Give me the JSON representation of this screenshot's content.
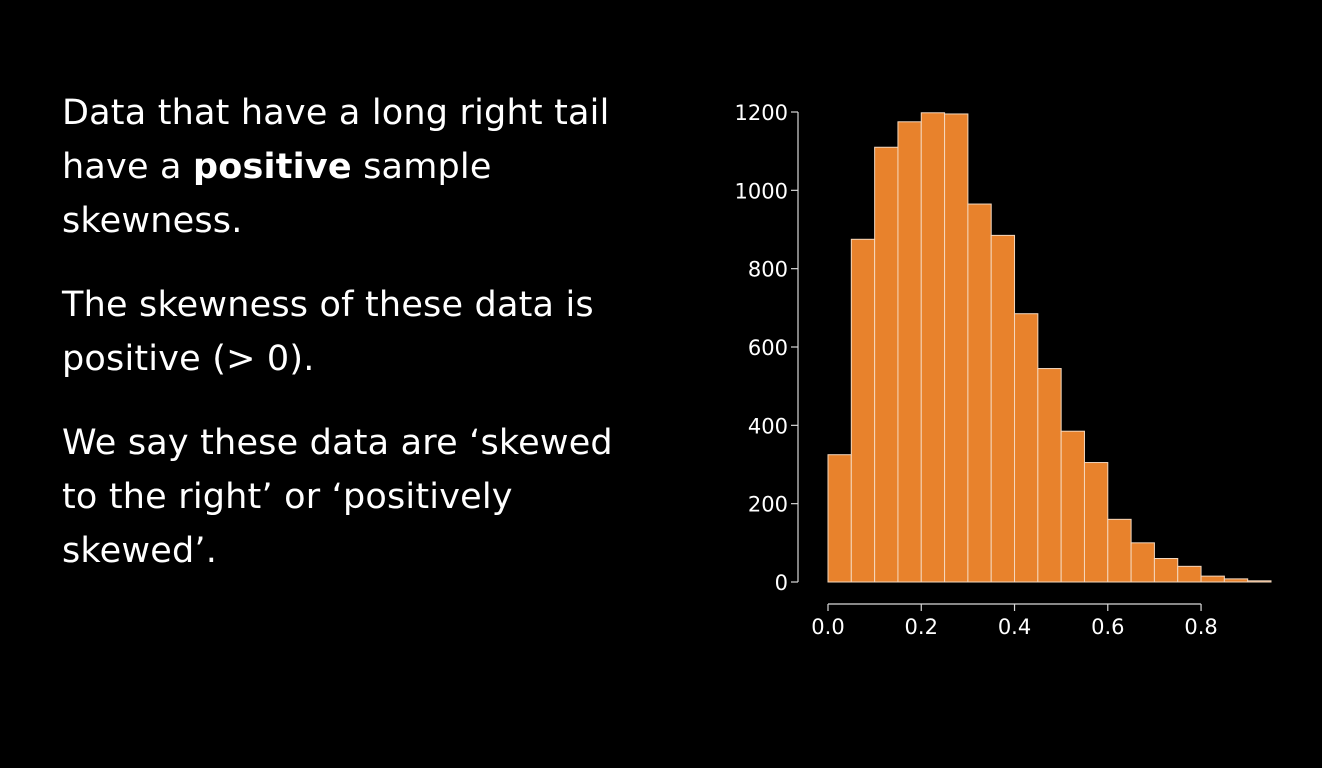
{
  "slide": {
    "paragraphs": [
      {
        "before": "Data that have a long right tail have a ",
        "bold": "positive",
        "after": " sample skewness."
      },
      {
        "before": "The skewness of these data is positive (> 0).",
        "bold": "",
        "after": ""
      },
      {
        "before": "We say these data are ‘skewed to the right’ or ‘positively skewed’.",
        "bold": "",
        "after": ""
      }
    ]
  },
  "chart_data": {
    "type": "bar",
    "bin_width": 0.05,
    "bin_starts": [
      0.0,
      0.05,
      0.1,
      0.15,
      0.2,
      0.25,
      0.3,
      0.35,
      0.4,
      0.45,
      0.5,
      0.55,
      0.6,
      0.65,
      0.7,
      0.75,
      0.8,
      0.85,
      0.9
    ],
    "values": [
      325,
      875,
      1110,
      1175,
      1198,
      1195,
      965,
      885,
      685,
      545,
      385,
      305,
      160,
      100,
      60,
      40,
      15,
      8,
      3
    ],
    "xlim": [
      0,
      0.95
    ],
    "ylim": [
      0,
      1200
    ],
    "x_ticks": [
      0.0,
      0.2,
      0.4,
      0.6,
      0.8
    ],
    "x_tick_labels": [
      "0.0",
      "0.2",
      "0.4",
      "0.6",
      "0.8"
    ],
    "y_ticks": [
      0,
      200,
      400,
      600,
      800,
      1000,
      1200
    ],
    "y_tick_labels": [
      "0",
      "200",
      "400",
      "600",
      "800",
      "1000",
      "1200"
    ],
    "title": "",
    "xlabel": "",
    "ylabel": "",
    "grid": false,
    "colors": {
      "bar": "#e8822c",
      "bar_edge": "#f4d7bd",
      "axis": "#d9d9d9",
      "text": "#ffffff"
    }
  }
}
